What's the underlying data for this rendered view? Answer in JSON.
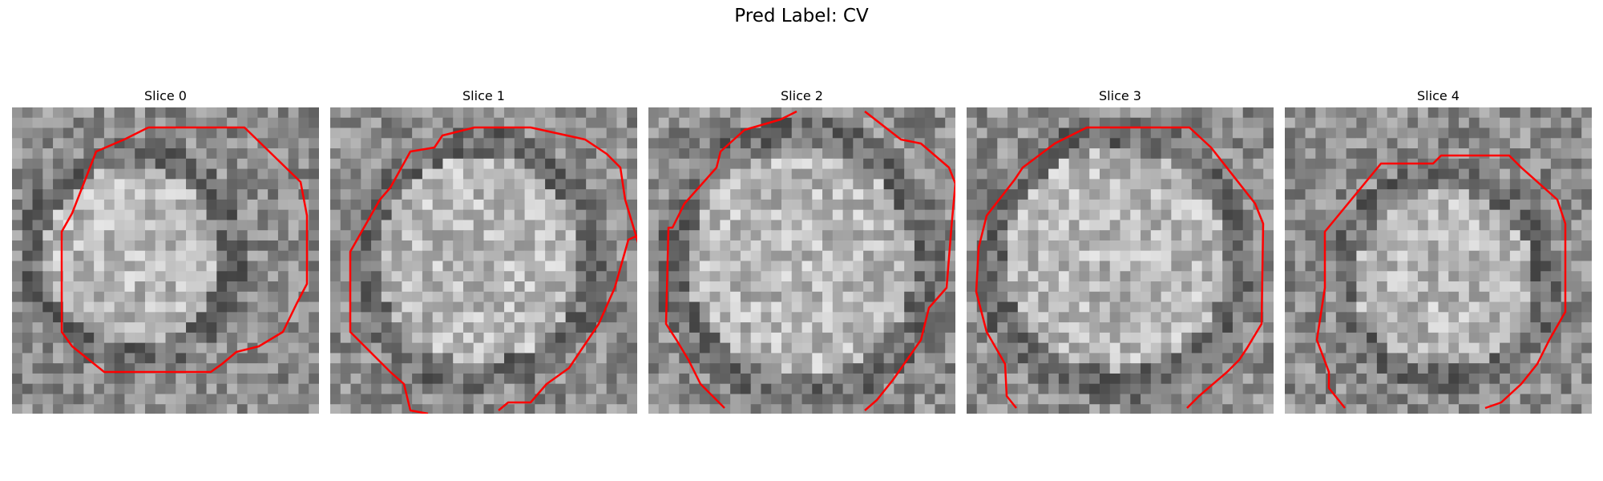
{
  "figure": {
    "title": "Pred Label: CV"
  },
  "panels": [
    {
      "title": "Slice 0",
      "contour_color": "#ff0000"
    },
    {
      "title": "Slice 1",
      "contour_color": "#ff0000"
    },
    {
      "title": "Slice 2",
      "contour_color": "#ff0000"
    },
    {
      "title": "Slice 3",
      "contour_color": "#ff0000"
    },
    {
      "title": "Slice 4",
      "contour_color": "#ff0000"
    }
  ]
}
